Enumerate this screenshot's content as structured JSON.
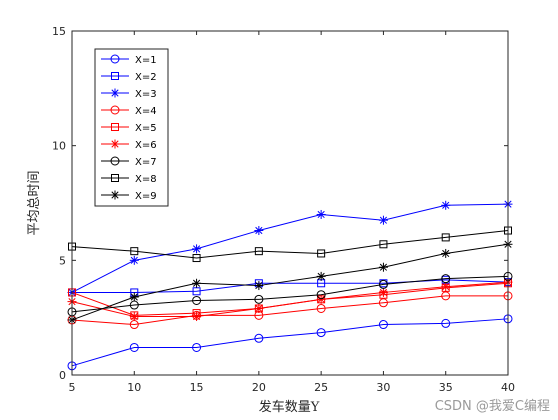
{
  "chart_data": {
    "type": "line",
    "title": "",
    "xlabel": "发车数量Y",
    "ylabel": "平均总时间",
    "x": [
      5,
      10,
      15,
      20,
      25,
      30,
      35,
      40
    ],
    "xlim": [
      5,
      40
    ],
    "ylim": [
      0,
      15
    ],
    "xticks": [
      5,
      10,
      15,
      20,
      25,
      30,
      35,
      40
    ],
    "yticks": [
      0,
      5,
      10,
      15
    ],
    "grid": false,
    "legend_position": "top-left",
    "series": [
      {
        "name": "X=1",
        "color": "#0000ff",
        "marker": "circle",
        "values": [
          0.4,
          1.2,
          1.2,
          1.6,
          1.85,
          2.2,
          2.25,
          2.45
        ]
      },
      {
        "name": "X=2",
        "color": "#0000ff",
        "marker": "square",
        "values": [
          3.6,
          3.6,
          3.65,
          4.0,
          4.0,
          4.0,
          4.15,
          4.05
        ]
      },
      {
        "name": "X=3",
        "color": "#0000ff",
        "marker": "asterisk",
        "values": [
          3.6,
          5.0,
          5.5,
          6.3,
          7.0,
          6.75,
          7.4,
          7.45
        ]
      },
      {
        "name": "X=4",
        "color": "#ff0000",
        "marker": "circle",
        "values": [
          2.4,
          2.2,
          2.6,
          2.6,
          2.9,
          3.15,
          3.45,
          3.45
        ]
      },
      {
        "name": "X=5",
        "color": "#ff0000",
        "marker": "square",
        "values": [
          3.6,
          2.6,
          2.7,
          2.9,
          3.3,
          3.5,
          3.8,
          4.0
        ]
      },
      {
        "name": "X=6",
        "color": "#ff0000",
        "marker": "asterisk",
        "values": [
          3.2,
          2.55,
          2.55,
          2.9,
          3.3,
          3.6,
          3.85,
          4.05
        ]
      },
      {
        "name": "X=7",
        "color": "#000000",
        "marker": "circle",
        "values": [
          2.75,
          3.05,
          3.25,
          3.3,
          3.5,
          3.95,
          4.2,
          4.3
        ]
      },
      {
        "name": "X=8",
        "color": "#000000",
        "marker": "square",
        "values": [
          5.6,
          5.4,
          5.1,
          5.4,
          5.3,
          5.7,
          6.0,
          6.3
        ]
      },
      {
        "name": "X=9",
        "color": "#000000",
        "marker": "asterisk",
        "values": [
          2.4,
          3.4,
          4.0,
          3.9,
          4.3,
          4.7,
          5.3,
          5.7
        ]
      }
    ]
  },
  "watermark": "CSDN @我爱C编程"
}
